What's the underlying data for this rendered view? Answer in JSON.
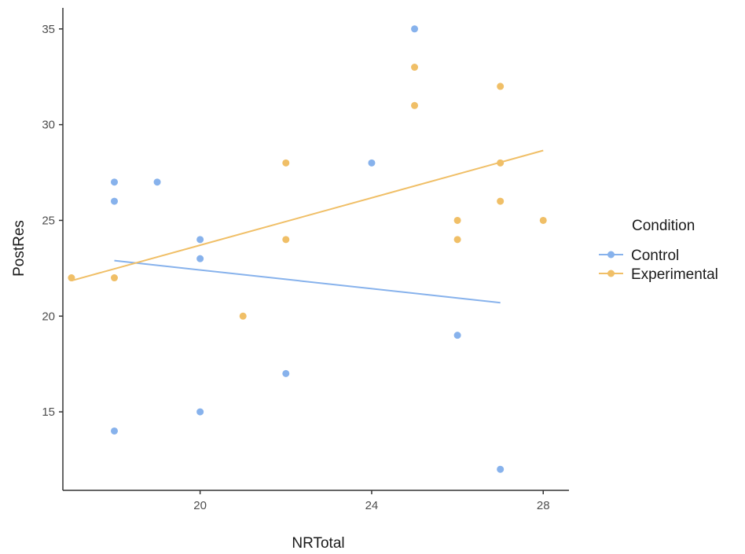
{
  "chart_data": {
    "type": "scatter",
    "xlabel": "NRTotal",
    "ylabel": "PostRes",
    "xlim": [
      16.8,
      28.6
    ],
    "ylim": [
      10.9,
      36.1
    ],
    "x_ticks": [
      20,
      24,
      28
    ],
    "y_ticks": [
      15,
      20,
      25,
      30,
      35
    ],
    "grid": false,
    "legend": {
      "title": "Condition",
      "position": "right",
      "entries": [
        "Control",
        "Experimental"
      ]
    },
    "series": [
      {
        "name": "Control",
        "color": "#87b2ec",
        "points": [
          {
            "x": 18,
            "y": 27
          },
          {
            "x": 18,
            "y": 26
          },
          {
            "x": 18,
            "y": 14
          },
          {
            "x": 19,
            "y": 27
          },
          {
            "x": 20,
            "y": 24
          },
          {
            "x": 20,
            "y": 23
          },
          {
            "x": 20,
            "y": 15
          },
          {
            "x": 22,
            "y": 17
          },
          {
            "x": 24,
            "y": 28
          },
          {
            "x": 25,
            "y": 35
          },
          {
            "x": 26,
            "y": 19
          },
          {
            "x": 27,
            "y": 12
          }
        ],
        "fit_line": {
          "x": [
            18,
            27
          ],
          "y": [
            22.9,
            20.7
          ]
        }
      },
      {
        "name": "Experimental",
        "color": "#f0bf67",
        "points": [
          {
            "x": 17,
            "y": 22
          },
          {
            "x": 18,
            "y": 22
          },
          {
            "x": 21,
            "y": 20
          },
          {
            "x": 22,
            "y": 28
          },
          {
            "x": 22,
            "y": 24
          },
          {
            "x": 25,
            "y": 33
          },
          {
            "x": 25,
            "y": 31
          },
          {
            "x": 26,
            "y": 25
          },
          {
            "x": 26,
            "y": 24
          },
          {
            "x": 27,
            "y": 32
          },
          {
            "x": 27,
            "y": 28
          },
          {
            "x": 27,
            "y": 26
          },
          {
            "x": 28,
            "y": 25
          }
        ],
        "fit_line": {
          "x": [
            17,
            28
          ],
          "y": [
            21.85,
            28.65
          ]
        }
      }
    ]
  }
}
